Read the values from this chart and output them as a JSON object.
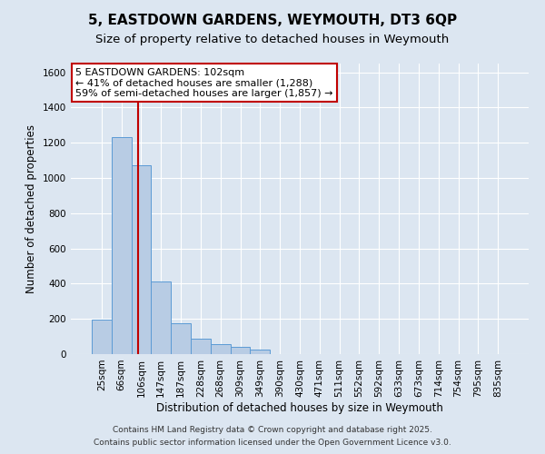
{
  "title": "5, EASTDOWN GARDENS, WEYMOUTH, DT3 6QP",
  "subtitle": "Size of property relative to detached houses in Weymouth",
  "xlabel": "Distribution of detached houses by size in Weymouth",
  "ylabel": "Number of detached properties",
  "categories": [
    "25sqm",
    "66sqm",
    "106sqm",
    "147sqm",
    "187sqm",
    "228sqm",
    "268sqm",
    "309sqm",
    "349sqm",
    "390sqm",
    "430sqm",
    "471sqm",
    "511sqm",
    "552sqm",
    "592sqm",
    "633sqm",
    "673sqm",
    "714sqm",
    "754sqm",
    "795sqm",
    "835sqm"
  ],
  "values": [
    195,
    1230,
    1075,
    415,
    175,
    90,
    55,
    40,
    25,
    0,
    0,
    0,
    0,
    0,
    0,
    0,
    0,
    0,
    0,
    0,
    0
  ],
  "bar_color": "#b8cce4",
  "bar_edge_color": "#5b9bd5",
  "vline_color": "#c00000",
  "vline_x": 1.85,
  "annotation_line1": "5 EASTDOWN GARDENS: 102sqm",
  "annotation_line2": "← 41% of detached houses are smaller (1,288)",
  "annotation_line3": "59% of semi-detached houses are larger (1,857) →",
  "annotation_box_facecolor": "#ffffff",
  "annotation_box_edgecolor": "#c00000",
  "ylim": [
    0,
    1650
  ],
  "yticks": [
    0,
    200,
    400,
    600,
    800,
    1000,
    1200,
    1400,
    1600
  ],
  "bg_color": "#dce6f1",
  "title_fontsize": 11,
  "subtitle_fontsize": 9.5,
  "axis_label_fontsize": 8.5,
  "tick_fontsize": 7.5,
  "annotation_fontsize": 8,
  "footer1": "Contains HM Land Registry data © Crown copyright and database right 2025.",
  "footer2": "Contains public sector information licensed under the Open Government Licence v3.0.",
  "footer_fontsize": 6.5
}
